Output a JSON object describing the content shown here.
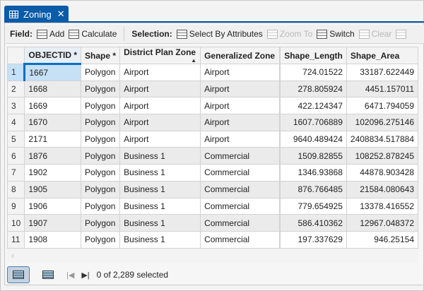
{
  "tab": {
    "title": "Zoning",
    "icon": "table-icon",
    "close": "✕"
  },
  "toolbar": {
    "field_label": "Field:",
    "add": "Add",
    "calculate": "Calculate",
    "selection_label": "Selection:",
    "select_by_attributes": "Select By Attributes",
    "zoom_to": "Zoom To",
    "switch": "Switch",
    "clear": "Clear"
  },
  "table": {
    "columns": [
      "OBJECTID *",
      "Shape *",
      "District Plan Zone",
      "Generalized Zone",
      "Shape_Length",
      "Shape_Area"
    ],
    "rows": [
      [
        "1",
        "1667",
        "Polygon",
        "Airport",
        "Airport",
        "724.01522",
        "33187.622449"
      ],
      [
        "2",
        "1668",
        "Polygon",
        "Airport",
        "Airport",
        "278.805924",
        "4451.157011"
      ],
      [
        "3",
        "1669",
        "Polygon",
        "Airport",
        "Airport",
        "422.124347",
        "6471.794059"
      ],
      [
        "4",
        "1670",
        "Polygon",
        "Airport",
        "Airport",
        "1607.706889",
        "102096.275146"
      ],
      [
        "5",
        "2171",
        "Polygon",
        "Airport",
        "Airport",
        "9640.489424",
        "2408834.517884"
      ],
      [
        "6",
        "1876",
        "Polygon",
        "Business 1",
        "Commercial",
        "1509.82855",
        "108252.878245"
      ],
      [
        "7",
        "1902",
        "Polygon",
        "Business 1",
        "Commercial",
        "1346.93868",
        "44878.903428"
      ],
      [
        "8",
        "1905",
        "Polygon",
        "Business 1",
        "Commercial",
        "876.766485",
        "21584.080643"
      ],
      [
        "9",
        "1906",
        "Polygon",
        "Business 1",
        "Commercial",
        "779.654925",
        "13378.416552"
      ],
      [
        "10",
        "1907",
        "Polygon",
        "Business 1",
        "Commercial",
        "586.410362",
        "12967.048372"
      ],
      [
        "11",
        "1908",
        "Polygon",
        "Business 1",
        "Commercial",
        "197.337629",
        "946.25154"
      ]
    ]
  },
  "footer": {
    "status": "0 of 2,289 selected"
  },
  "colors": {
    "accent": "#0a5ba8",
    "selected_cell": "#c6e0f5"
  }
}
